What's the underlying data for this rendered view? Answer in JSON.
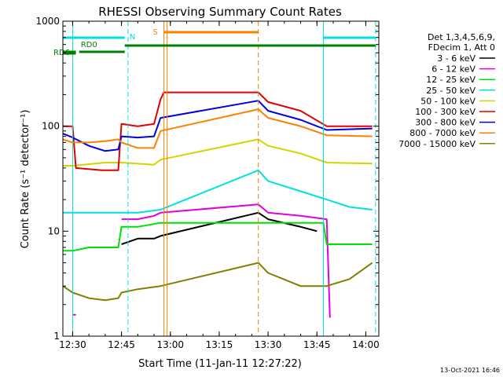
{
  "chart_data": {
    "type": "line",
    "title": "RHESSI Observing Summary Count Rates",
    "xlabel": "Start Time (11-Jan-11 12:27:22)",
    "ylabel": "Count Rate (s⁻¹ detector⁻¹)",
    "yscale": "log",
    "ylim": [
      1,
      1000
    ],
    "xlim": [
      "12:27",
      "14:04"
    ],
    "x_ticks": [
      "12:30",
      "12:45",
      "13:00",
      "13:15",
      "13:30",
      "13:45",
      "14:00"
    ],
    "y_ticks": [
      "1",
      "10",
      "100",
      "1000"
    ],
    "legend_header": [
      "Det 1,3,4,5,6,9,",
      "FDecim 1, Att 0"
    ],
    "legend_position": "top-right",
    "footer_date": "13-Oct-2021 16:46",
    "series": [
      {
        "name": "3 - 6 keV",
        "color": "#000000",
        "x": [
          "12:27",
          "12:44",
          "12:45",
          "12:50",
          "12:55",
          "12:57",
          "13:27",
          "13:30",
          "13:40",
          "13:45",
          "13:46"
        ],
        "values": [
          null,
          null,
          7.5,
          8.5,
          8.5,
          9,
          15,
          13,
          11,
          10,
          null
        ]
      },
      {
        "name": "6 - 12 keV",
        "color": "#e000e0",
        "x": [
          "12:27",
          "12:30",
          "12:31",
          "12:44",
          "12:45",
          "12:50",
          "12:55",
          "12:57",
          "13:27",
          "13:30",
          "13:40",
          "13:48",
          "13:49"
        ],
        "values": [
          null,
          1.6,
          1.6,
          null,
          13,
          13,
          14,
          15,
          18,
          15,
          14,
          13,
          1.5
        ]
      },
      {
        "name": "12 - 25 keV",
        "color": "#00e000",
        "x": [
          "12:27",
          "12:30",
          "12:35",
          "12:40",
          "12:44",
          "12:45",
          "12:50",
          "12:57",
          "13:27",
          "13:30",
          "13:40",
          "13:47",
          "13:48",
          "14:02"
        ],
        "values": [
          6.5,
          6.5,
          7,
          7,
          7,
          11,
          11,
          12,
          12,
          12,
          12,
          12,
          7.5,
          7.5
        ]
      },
      {
        "name": "25 - 50 keV",
        "color": "#00e0e0",
        "x": [
          "12:27",
          "12:30",
          "12:40",
          "12:44",
          "12:45",
          "12:50",
          "12:57",
          "13:27",
          "13:30",
          "13:40",
          "13:48",
          "13:55",
          "14:02"
        ],
        "values": [
          15,
          15,
          15,
          15,
          15,
          15,
          16,
          38,
          30,
          24,
          20,
          17,
          16
        ]
      },
      {
        "name": "50 - 100 keV",
        "color": "#d4d400",
        "x": [
          "12:27",
          "12:30",
          "12:40",
          "12:44",
          "12:45",
          "12:55",
          "12:57",
          "13:27",
          "13:30",
          "13:40",
          "13:48",
          "14:02"
        ],
        "values": [
          42,
          42,
          45,
          45,
          45,
          43,
          48,
          75,
          65,
          55,
          45,
          44
        ]
      },
      {
        "name": "100 - 300 keV",
        "color": "#e00000",
        "x": [
          "12:27",
          "12:30",
          "12:31",
          "12:39",
          "12:40",
          "12:44",
          "12:45",
          "12:50",
          "12:55",
          "12:57",
          "12:58",
          "13:27",
          "13:30",
          "13:40",
          "13:48",
          "14:02"
        ],
        "values": [
          100,
          100,
          40,
          38,
          38,
          38,
          105,
          100,
          105,
          180,
          210,
          210,
          170,
          140,
          100,
          100
        ]
      },
      {
        "name": "300 - 800 keV",
        "color": "#0000e0",
        "x": [
          "12:27",
          "12:30",
          "12:35",
          "12:40",
          "12:44",
          "12:45",
          "12:50",
          "12:55",
          "12:57",
          "13:27",
          "13:30",
          "13:40",
          "13:48",
          "14:02"
        ],
        "values": [
          85,
          78,
          65,
          58,
          60,
          80,
          78,
          80,
          120,
          175,
          140,
          115,
          92,
          95
        ]
      },
      {
        "name": "800 - 7000 keV",
        "color": "#ff8000",
        "x": [
          "12:27",
          "12:30",
          "12:35",
          "12:40",
          "12:44",
          "12:45",
          "12:50",
          "12:55",
          "12:57",
          "13:27",
          "13:30",
          "13:40",
          "13:48",
          "14:02"
        ],
        "values": [
          75,
          70,
          70,
          72,
          75,
          70,
          62,
          62,
          90,
          145,
          120,
          100,
          82,
          80
        ]
      },
      {
        "name": "7000 - 15000 keV",
        "color": "#808000",
        "x": [
          "12:27",
          "12:30",
          "12:35",
          "12:40",
          "12:44",
          "12:45",
          "12:50",
          "12:57",
          "13:27",
          "13:30",
          "13:40",
          "13:48",
          "13:55",
          "14:02"
        ],
        "values": [
          3,
          2.6,
          2.3,
          2.2,
          2.3,
          2.6,
          2.8,
          3,
          5,
          4,
          3,
          3,
          3.5,
          5
        ]
      }
    ],
    "annotations": {
      "vlines": [
        {
          "x": "12:30",
          "color": "#00e0e0",
          "style": "solid"
        },
        {
          "x": "12:47",
          "color": "#00e0e0",
          "style": "dashed"
        },
        {
          "x": "12:58",
          "color": "#ff8000",
          "style": "solid"
        },
        {
          "x": "12:59",
          "color": "#ff8000",
          "style": "solid"
        },
        {
          "x": "13:27",
          "color": "#ff8000",
          "style": "dashed"
        },
        {
          "x": "13:47",
          "color": "#00e0e0",
          "style": "solid"
        },
        {
          "x": "14:03",
          "color": "#00e0e0",
          "style": "dashed"
        }
      ],
      "bars": [
        {
          "label": "",
          "color": "#00e0e0",
          "x0": "12:27",
          "x1": "12:46"
        },
        {
          "label": "N",
          "color": "#00e0e0",
          "x0": "12:46",
          "x1": "12:46"
        },
        {
          "label": "",
          "color": "#00e0e0",
          "x0": "13:47",
          "x1": "14:03"
        },
        {
          "label": "S",
          "color": "#ff8000",
          "x0": "12:58",
          "x1": "13:27"
        },
        {
          "label": "RD0",
          "color": "#008000",
          "x0": "12:32",
          "x1": "12:46"
        },
        {
          "label": "RD6",
          "color": "#008000",
          "x0": "12:27",
          "x1": "12:31"
        },
        {
          "label": "",
          "color": "#008000",
          "x0": "12:46",
          "x1": "14:03"
        }
      ]
    }
  }
}
